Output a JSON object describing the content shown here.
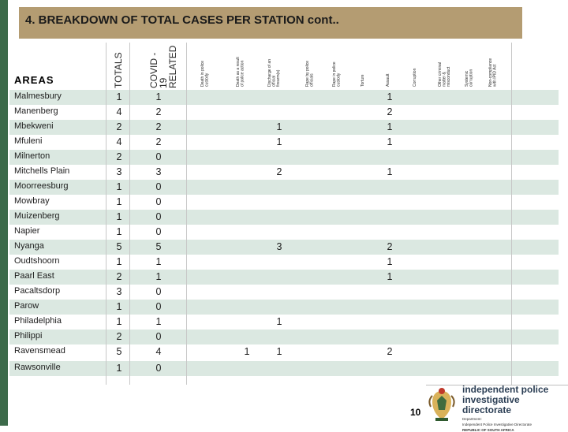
{
  "title": "4. BREAKDOWN OF TOTAL CASES PER STATION cont..",
  "header": {
    "areas": "AREAS",
    "totals": "TOTALS",
    "covid": "COVID -\n19\nRELATED",
    "cols": [
      "Death in police\ncustody",
      "Death as a result\nof police action",
      "Discharge of an\nofficial\nfirearm(s)",
      "Rape by police\nofficials",
      "Rape in police\ncustody",
      "Torture",
      "Assault",
      "Corruption",
      "Other criminal\nmatter &\nmisconduct",
      "Systemic\ncorruption",
      "Non-compliance\nwith IPID Act"
    ]
  },
  "rows": [
    {
      "name": "Malmesbury",
      "totals": "1",
      "covid": "1",
      "discharge": "",
      "assault": "1",
      "death_action": ""
    },
    {
      "name": "Manenberg",
      "totals": "4",
      "covid": "2",
      "discharge": "",
      "assault": "2",
      "death_action": ""
    },
    {
      "name": "Mbekweni",
      "totals": "2",
      "covid": "2",
      "discharge": "1",
      "assault": "1",
      "death_action": ""
    },
    {
      "name": "Mfuleni",
      "totals": "4",
      "covid": "2",
      "discharge": "1",
      "assault": "1",
      "death_action": ""
    },
    {
      "name": "Milnerton",
      "totals": "2",
      "covid": "0",
      "discharge": "",
      "assault": "",
      "death_action": ""
    },
    {
      "name": "Mitchells Plain",
      "totals": "3",
      "covid": "3",
      "discharge": "2",
      "assault": "1",
      "death_action": ""
    },
    {
      "name": "Moorreesburg",
      "totals": "1",
      "covid": "0",
      "discharge": "",
      "assault": "",
      "death_action": ""
    },
    {
      "name": "Mowbray",
      "totals": "1",
      "covid": "0",
      "discharge": "",
      "assault": "",
      "death_action": ""
    },
    {
      "name": "Muizenberg",
      "totals": "1",
      "covid": "0",
      "discharge": "",
      "assault": "",
      "death_action": ""
    },
    {
      "name": "Napier",
      "totals": "1",
      "covid": "0",
      "discharge": "",
      "assault": "",
      "death_action": ""
    },
    {
      "name": "Nyanga",
      "totals": "5",
      "covid": "5",
      "discharge": "3",
      "assault": "2",
      "death_action": ""
    },
    {
      "name": "Oudtshoorn",
      "totals": "1",
      "covid": "1",
      "discharge": "",
      "assault": "1",
      "death_action": ""
    },
    {
      "name": "Paarl East",
      "totals": "2",
      "covid": "1",
      "discharge": "",
      "assault": "1",
      "death_action": ""
    },
    {
      "name": "Pacaltsdorp",
      "totals": "3",
      "covid": "0",
      "discharge": "",
      "assault": "",
      "death_action": ""
    },
    {
      "name": "Parow",
      "totals": "1",
      "covid": "0",
      "discharge": "",
      "assault": "",
      "death_action": ""
    },
    {
      "name": "Philadelphia",
      "totals": "1",
      "covid": "1",
      "discharge": "1",
      "assault": "",
      "death_action": ""
    },
    {
      "name": "Philippi",
      "totals": "2",
      "covid": "0",
      "discharge": "",
      "assault": "",
      "death_action": ""
    },
    {
      "name": "Ravensmead",
      "totals": "5",
      "covid": "4",
      "discharge": "1",
      "assault": "2",
      "death_action": "1"
    },
    {
      "name": "Rawsonville",
      "totals": "1",
      "covid": "0",
      "discharge": "",
      "assault": "",
      "death_action": ""
    }
  ],
  "footer": {
    "page_number": "10",
    "org_line1": "independent police",
    "org_line2": "investigative directorate",
    "org_sub1": "Department:",
    "org_sub2": "Independent Police Investigative Directorate",
    "org_sub3": "REPUBLIC OF SOUTH AFRICA"
  },
  "colors": {
    "title_bg": "#b49c72",
    "row_alt": "#dbe8e1",
    "strip": "#3c6a4a"
  }
}
